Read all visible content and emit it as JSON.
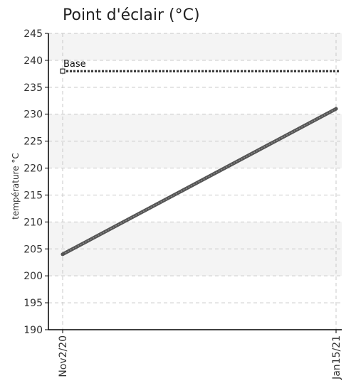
{
  "chart_data": {
    "type": "line",
    "title": "Point d'éclair (°C)",
    "xlabel": "",
    "ylabel": "température °C",
    "ylim": [
      190,
      245
    ],
    "y_ticks": [
      190,
      195,
      200,
      205,
      210,
      215,
      220,
      225,
      230,
      235,
      240,
      245
    ],
    "x_ticks": [
      "Nov2/20",
      "Jan15/21"
    ],
    "grid": true,
    "series": [
      {
        "values": [
          204,
          231
        ],
        "color": "#555555"
      }
    ],
    "reference_line": {
      "label": "Base",
      "value": 238,
      "color": "#333333"
    },
    "band_colors": [
      "#f4f4f4",
      "#ffffff"
    ]
  }
}
